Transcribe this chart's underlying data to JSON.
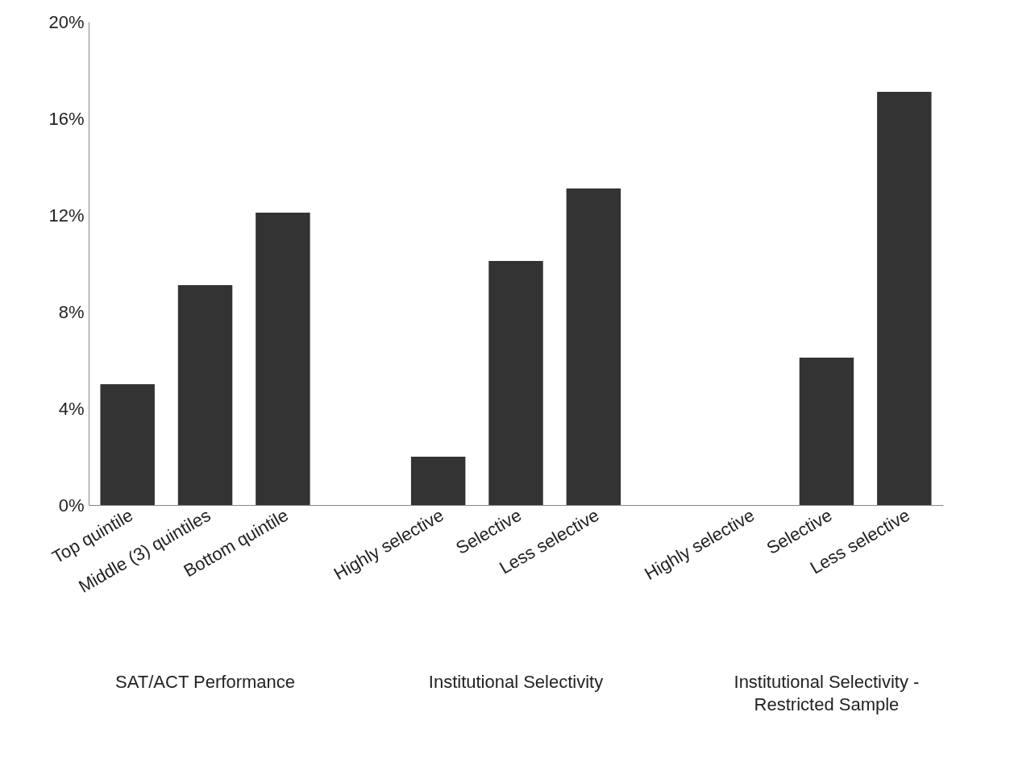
{
  "chart_data": {
    "type": "bar",
    "categories": [
      "Top quintile",
      "Middle (3) quintiles",
      "Bottom quintile",
      null,
      "Highly selective",
      "Selective",
      "Less selective",
      null,
      "Highly selective",
      "Selective",
      "Less selective"
    ],
    "values": [
      5.0,
      9.1,
      12.1,
      null,
      2.0,
      10.1,
      13.1,
      null,
      0,
      6.1,
      17.1
    ],
    "color": "#333333",
    "ylim": [
      0,
      20
    ],
    "yticks": [
      {
        "value": 0,
        "label": "0%"
      },
      {
        "value": 4,
        "label": "4%"
      },
      {
        "value": 8,
        "label": "8%"
      },
      {
        "value": 12,
        "label": "12%"
      },
      {
        "value": 16,
        "label": "16%"
      },
      {
        "value": 20,
        "label": "20%"
      }
    ],
    "annotations": [
      "SAT/ACT Performance",
      "Institutional Selectivity",
      "Institutional Selectivity - Restricted Sample"
    ]
  }
}
